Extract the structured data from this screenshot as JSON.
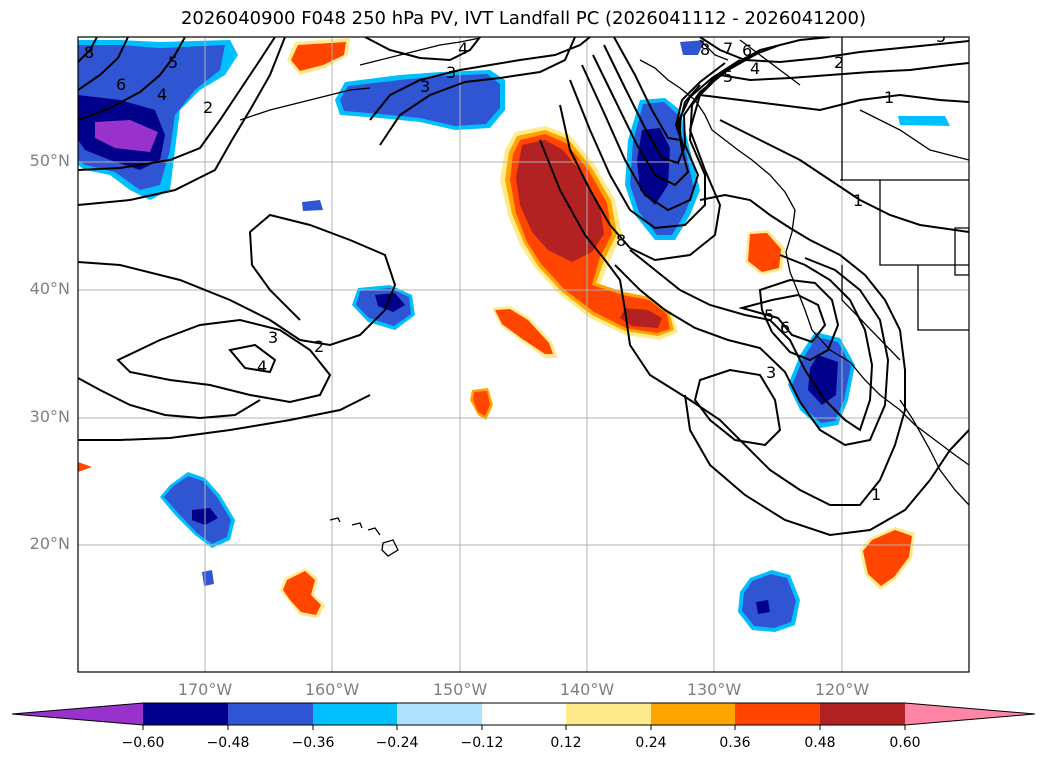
{
  "title": "2026040900 F048 250 hPa PV, IVT Landfall PC (2026041112 - 2026041200)",
  "map": {
    "lat_labels": [
      "50°N",
      "40°N",
      "30°N",
      "20°N"
    ],
    "lon_labels": [
      "170°W",
      "160°W",
      "150°W",
      "140°W",
      "130°W",
      "120°W"
    ],
    "contour_labels": [
      "8",
      "6",
      "5",
      "4",
      "2",
      "3",
      "4",
      "3",
      "2",
      "8",
      "7",
      "6",
      "5",
      "4",
      "2",
      "1",
      "1",
      "8",
      "5",
      "6",
      "3",
      "3",
      "2",
      "4",
      "1",
      "5"
    ]
  },
  "colorbar": {
    "ticks": [
      "−0.60",
      "−0.48",
      "−0.36",
      "−0.24",
      "−0.12",
      "0.12",
      "0.24",
      "0.36",
      "0.48",
      "0.60"
    ],
    "colors": [
      "#9932cc",
      "#00008b",
      "#3055d3",
      "#00bfff",
      "#b0e2ff",
      "#ffffff",
      "#ffeb8c",
      "#ffa500",
      "#ff4500",
      "#b22222",
      "#ff85a6"
    ]
  }
}
